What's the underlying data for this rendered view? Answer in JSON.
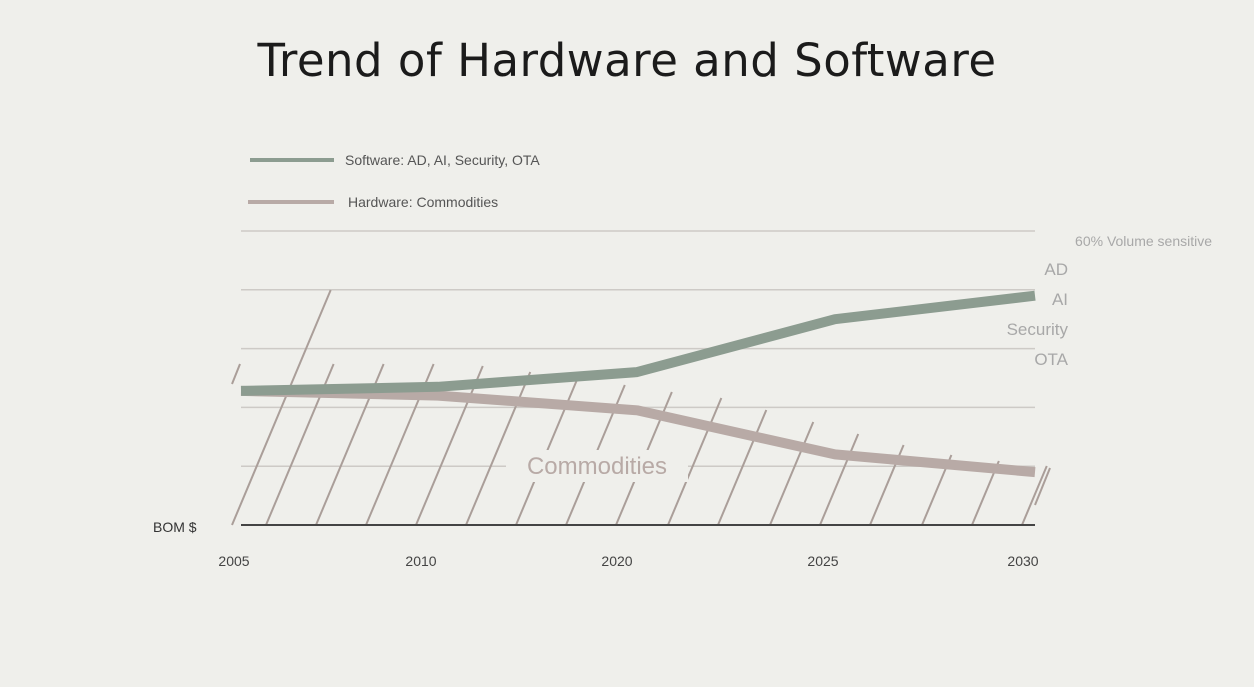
{
  "chart_data": {
    "type": "line",
    "title": "Trend of Hardware and Software",
    "ylabel": "BOM $",
    "x_ticks": [
      "2005",
      "2010",
      "2020",
      "2025",
      "2030"
    ],
    "ylim": [
      0,
      5
    ],
    "grid": true,
    "legend_position": "top-left",
    "series": [
      {
        "name": "Software: AD, AI, Security, OTA",
        "color": "#8c9c90",
        "x": [
          0,
          1,
          2,
          3,
          4
        ],
        "y": [
          2.28,
          2.35,
          2.6,
          3.5,
          3.9
        ]
      },
      {
        "name": "Hardware: Commodities",
        "color": "#b8aaa6",
        "x": [
          0,
          1,
          2,
          3,
          4
        ],
        "y": [
          2.28,
          2.2,
          1.95,
          1.2,
          0.9
        ]
      }
    ],
    "annotations": {
      "right_note": "60% Volume sensitive",
      "right_items": [
        "AD",
        "AI",
        "Security",
        "OTA"
      ],
      "area_label": "Commodities"
    }
  }
}
